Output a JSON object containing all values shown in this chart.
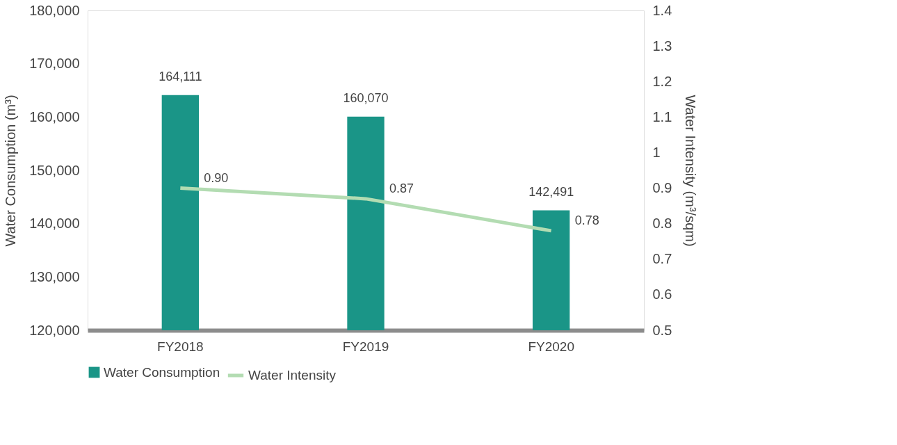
{
  "chart_data": {
    "type": "bar",
    "categories": [
      "FY2018",
      "FY2019",
      "FY2020"
    ],
    "series": [
      {
        "name": "Water Consumption",
        "color": "#1a9587",
        "values": [
          164111,
          160070,
          142491
        ],
        "value_labels": [
          "164,111",
          "160,070",
          "142,491"
        ]
      },
      {
        "name": "Water Intensity",
        "type": "line",
        "axis": "y2",
        "color": "#b3dcb2",
        "values": [
          0.9,
          0.87,
          0.78
        ],
        "value_labels": [
          "0.90",
          "0.87",
          "0.78"
        ]
      }
    ],
    "ylabel": "Water Consumption (m³)",
    "y2label": "Water Intensity (m³/sqm)",
    "ylim": [
      120000,
      180000
    ],
    "yticks": [
      {
        "value": 120000,
        "label": "120,000"
      },
      {
        "value": 130000,
        "label": "130,000"
      },
      {
        "value": 140000,
        "label": "140,000"
      },
      {
        "value": 150000,
        "label": "150,000"
      },
      {
        "value": 160000,
        "label": "160,000"
      },
      {
        "value": 170000,
        "label": "170,000"
      },
      {
        "value": 180000,
        "label": "180,000"
      }
    ],
    "y2lim": [
      0.5,
      1.4
    ],
    "y2ticks": [
      0.5,
      0.6,
      0.7,
      0.8,
      0.9,
      1,
      1.1,
      1.2,
      1.3,
      1.4
    ],
    "grid": false,
    "legend": "bottom",
    "marker": "none",
    "line_style": "solid"
  }
}
